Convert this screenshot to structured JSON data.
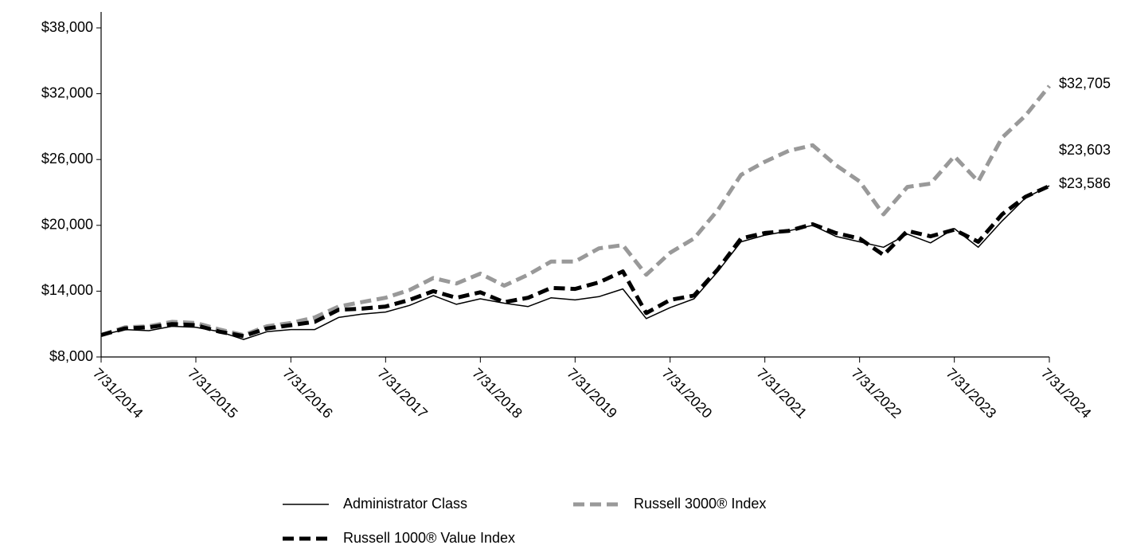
{
  "chart_data": {
    "type": "line",
    "x": [
      "7/31/2014",
      "10/31/2014",
      "1/31/2015",
      "4/30/2015",
      "7/31/2015",
      "10/31/2015",
      "1/31/2016",
      "4/30/2016",
      "7/31/2016",
      "10/31/2016",
      "1/31/2017",
      "4/30/2017",
      "7/31/2017",
      "10/31/2017",
      "1/31/2018",
      "4/30/2018",
      "7/31/2018",
      "10/31/2018",
      "1/31/2019",
      "4/30/2019",
      "7/31/2019",
      "10/31/2019",
      "1/31/2020",
      "4/30/2020",
      "7/31/2020",
      "10/31/2020",
      "1/31/2021",
      "4/30/2021",
      "7/31/2021",
      "10/31/2021",
      "1/31/2022",
      "4/30/2022",
      "7/31/2022",
      "10/31/2022",
      "1/31/2023",
      "4/30/2023",
      "7/31/2023",
      "10/31/2023",
      "1/31/2024",
      "4/30/2024",
      "7/31/2024"
    ],
    "xlim": [
      "7/31/2014",
      "7/31/2024"
    ],
    "xticks": [
      "7/31/2014",
      "7/31/2015",
      "7/31/2016",
      "7/31/2017",
      "7/31/2018",
      "7/31/2019",
      "7/31/2020",
      "7/31/2021",
      "7/31/2022",
      "7/31/2023",
      "7/31/2024"
    ],
    "ylim": [
      8000,
      38000
    ],
    "yticks": [
      {
        "value": 8000,
        "label": "$8,000"
      },
      {
        "value": 14000,
        "label": "$14,000"
      },
      {
        "value": 20000,
        "label": "$20,000"
      },
      {
        "value": 26000,
        "label": "$26,000"
      },
      {
        "value": 32000,
        "label": "$32,000"
      },
      {
        "value": 38000,
        "label": "$38,000"
      }
    ],
    "grid": false,
    "legend": "bottom",
    "series": [
      {
        "name": "Administrator Class",
        "color": "#000000",
        "dash": false,
        "values": [
          10000,
          10500,
          10400,
          10800,
          10700,
          10300,
          9600,
          10300,
          10500,
          10500,
          11600,
          11900,
          12100,
          12700,
          13600,
          12800,
          13300,
          12900,
          12600,
          13400,
          13200,
          13500,
          14200,
          11500,
          12500,
          13300,
          15800,
          18500,
          19100,
          19500,
          20000,
          19000,
          18500,
          18000,
          19200,
          18400,
          19700,
          18000,
          20400,
          22500,
          23603
        ],
        "end_label": {
          "value": 23603,
          "label": "$23,603"
        }
      },
      {
        "name": "Russell 3000® Index",
        "color": "#999999",
        "dash": true,
        "values": [
          10000,
          10700,
          10800,
          11200,
          11100,
          10500,
          10000,
          10800,
          11100,
          11600,
          12600,
          13000,
          13400,
          14100,
          15200,
          14700,
          15600,
          14500,
          15500,
          16700,
          16700,
          17900,
          18200,
          15500,
          17500,
          18800,
          21400,
          24600,
          25800,
          26800,
          27300,
          25500,
          24000,
          21000,
          23500,
          23800,
          26300,
          24000,
          28000,
          30000,
          32705
        ],
        "end_label": {
          "value": 32705,
          "label": "$32,705"
        }
      },
      {
        "name": "Russell 1000® Value Index",
        "color": "#000000",
        "dash": true,
        "values": [
          10000,
          10600,
          10700,
          11000,
          10900,
          10300,
          9900,
          10600,
          10900,
          11200,
          12300,
          12400,
          12600,
          13200,
          14000,
          13400,
          13900,
          13000,
          13400,
          14300,
          14200,
          14800,
          15800,
          12000,
          13200,
          13600,
          16000,
          18800,
          19300,
          19500,
          20100,
          19300,
          18800,
          17300,
          19500,
          19000,
          19600,
          18500,
          21000,
          22600,
          23586
        ],
        "end_label": {
          "value": 23586,
          "label": "$23,586"
        }
      }
    ]
  }
}
